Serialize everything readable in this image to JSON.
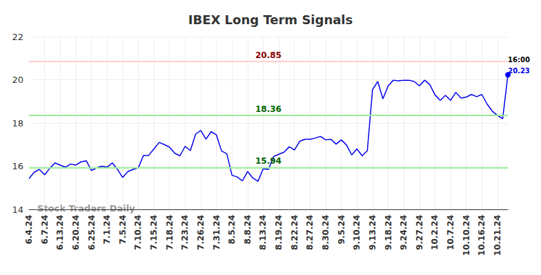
{
  "chart_data": {
    "type": "line",
    "title": "IBEX Long Term Signals",
    "watermark": "Stock Traders Daily",
    "categories": [
      "6.4.24",
      null,
      null,
      "6.7.24",
      null,
      null,
      "6.13.24",
      null,
      null,
      "6.20.24",
      null,
      null,
      "6.25.24",
      null,
      null,
      "7.1.24",
      null,
      null,
      "7.5.24",
      null,
      null,
      "7.10.24",
      null,
      null,
      "7.15.24",
      null,
      null,
      "7.18.24",
      null,
      null,
      "7.23.24",
      null,
      null,
      "7.26.24",
      null,
      null,
      "7.31.24",
      null,
      null,
      "8.5.24",
      null,
      null,
      "8.8.24",
      null,
      null,
      "8.13.24",
      null,
      null,
      "8.19.24",
      null,
      null,
      "8.22.24",
      null,
      null,
      "8.27.24",
      null,
      null,
      "8.30.24",
      null,
      null,
      "9.5.24",
      null,
      null,
      "9.10.24",
      null,
      null,
      "9.13.24",
      null,
      null,
      "9.18.24",
      null,
      null,
      "9.24.24",
      null,
      null,
      "9.27.24",
      null,
      null,
      "10.2.24",
      null,
      null,
      "10.7.24",
      null,
      null,
      "10.10.24",
      null,
      null,
      "10.16.24",
      null,
      null,
      "10.21.24",
      null,
      null
    ],
    "values": [
      15.42,
      15.72,
      15.85,
      15.6,
      15.9,
      16.15,
      16.05,
      15.95,
      16.1,
      16.05,
      16.2,
      16.25,
      15.8,
      15.92,
      16.0,
      15.95,
      16.15,
      15.85,
      15.48,
      15.75,
      15.85,
      15.92,
      16.5,
      16.5,
      16.8,
      17.1,
      17.0,
      16.88,
      16.6,
      16.48,
      16.92,
      16.72,
      17.48,
      17.65,
      17.25,
      17.6,
      17.45,
      16.7,
      16.58,
      15.58,
      15.5,
      15.32,
      15.75,
      15.45,
      15.3,
      15.88,
      15.85,
      16.45,
      16.55,
      16.65,
      16.9,
      16.75,
      17.15,
      17.25,
      17.25,
      17.3,
      17.38,
      17.22,
      17.25,
      17.02,
      17.22,
      16.98,
      16.52,
      16.8,
      16.48,
      16.72,
      19.55,
      19.92,
      19.12,
      19.72,
      19.98,
      19.95,
      19.98,
      19.98,
      19.92,
      19.72,
      19.98,
      19.78,
      19.3,
      19.05,
      19.28,
      19.05,
      19.42,
      19.15,
      19.2,
      19.32,
      19.22,
      19.32,
      18.88,
      18.55,
      18.35,
      18.2,
      20.23
    ],
    "color": "#0000ee",
    "levels": [
      {
        "value": 20.85,
        "color": "#ffcccc"
      },
      {
        "value": 18.36,
        "color": "#99ee99"
      },
      {
        "value": 15.94,
        "color": "#99ee99"
      }
    ],
    "last_point_annotation": "16:00",
    "ylim": [
      14,
      22
    ],
    "yticks": [
      14,
      16,
      18,
      20,
      22
    ],
    "grid": true
  }
}
